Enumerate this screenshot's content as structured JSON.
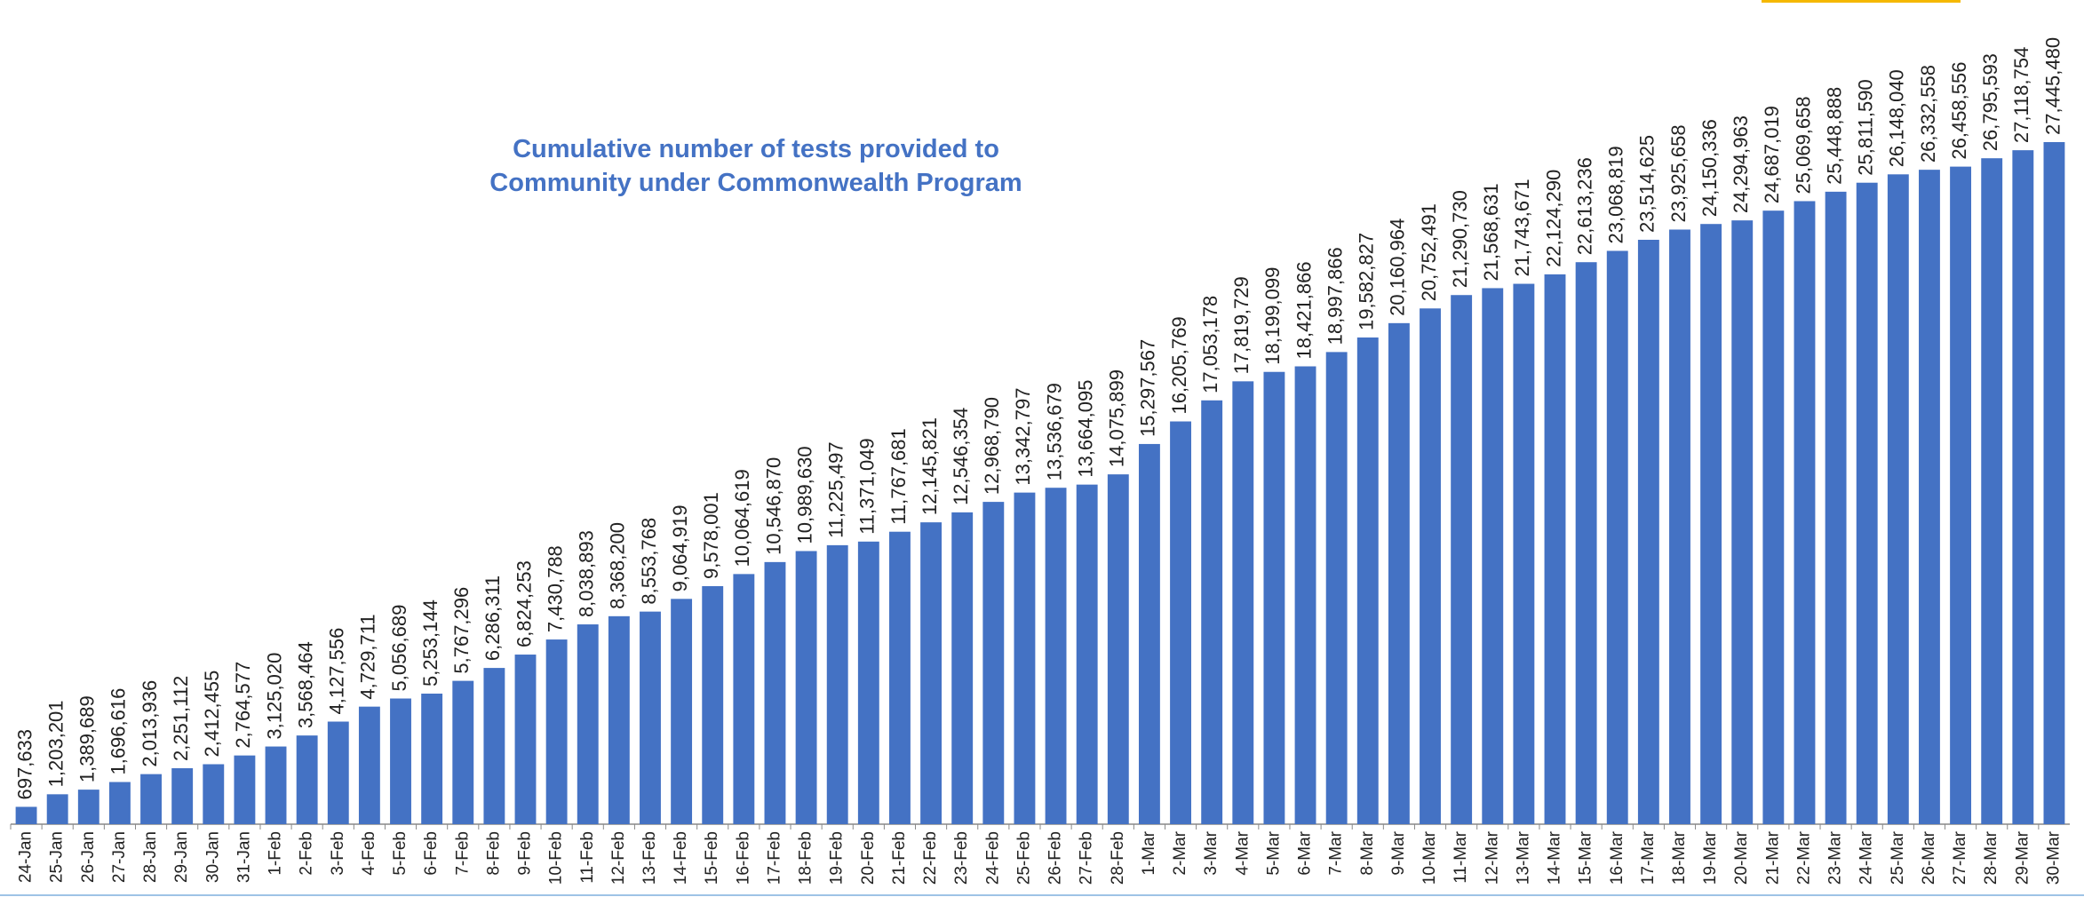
{
  "chart_data": {
    "type": "bar",
    "title": [
      "Cumulative number of tests provided to",
      "Community under Commonwealth Program"
    ],
    "color": "#4472c4",
    "categories": [
      "24-Jan",
      "25-Jan",
      "26-Jan",
      "27-Jan",
      "28-Jan",
      "29-Jan",
      "30-Jan",
      "31-Jan",
      "1-Feb",
      "2-Feb",
      "3-Feb",
      "4-Feb",
      "5-Feb",
      "6-Feb",
      "7-Feb",
      "8-Feb",
      "9-Feb",
      "10-Feb",
      "11-Feb",
      "12-Feb",
      "13-Feb",
      "14-Feb",
      "15-Feb",
      "16-Feb",
      "17-Feb",
      "18-Feb",
      "19-Feb",
      "20-Feb",
      "21-Feb",
      "22-Feb",
      "23-Feb",
      "24-Feb",
      "25-Feb",
      "26-Feb",
      "27-Feb",
      "28-Feb",
      "1-Mar",
      "2-Mar",
      "3-Mar",
      "4-Mar",
      "5-Mar",
      "6-Mar",
      "7-Mar",
      "8-Mar",
      "9-Mar",
      "10-Mar",
      "11-Mar",
      "12-Mar",
      "13-Mar",
      "14-Mar",
      "15-Mar",
      "16-Mar",
      "17-Mar",
      "18-Mar",
      "19-Mar",
      "20-Mar",
      "21-Mar",
      "22-Mar",
      "23-Mar",
      "24-Mar",
      "25-Mar",
      "26-Mar",
      "27-Mar",
      "28-Mar",
      "29-Mar",
      "30-Mar"
    ],
    "values": [
      697633,
      1203201,
      1389689,
      1696616,
      2013936,
      2251112,
      2412455,
      2764577,
      3125020,
      3568464,
      4127556,
      4729711,
      5056689,
      5253144,
      5767296,
      6286311,
      6824253,
      7430788,
      8038893,
      8368200,
      8553768,
      9064919,
      9578001,
      10064619,
      10546870,
      10989630,
      11225497,
      11371049,
      11767681,
      12145821,
      12546354,
      12968790,
      13342797,
      13536679,
      13664095,
      14075899,
      15297567,
      16205769,
      17053178,
      17819729,
      18199099,
      18421866,
      18997866,
      19582827,
      20160964,
      20752491,
      21290730,
      21568631,
      21743671,
      22124290,
      22613236,
      23068819,
      23514625,
      23925658,
      24150336,
      24294963,
      24687019,
      25069658,
      25448888,
      25811590,
      26148040,
      26332558,
      26458556,
      26795593,
      27118754,
      27445480
    ],
    "value_labels": [
      "697,633",
      "1,203,201",
      "1,389,689",
      "1,696,616",
      "2,013,936",
      "2,251,112",
      "2,412,455",
      "2,764,577",
      "3,125,020",
      "3,568,464",
      "4,127,556",
      "4,729,711",
      "5,056,689",
      "5,253,144",
      "5,767,296",
      "6,286,311",
      "6,824,253",
      "7,430,788",
      "8,038,893",
      "8,368,200",
      "8,553,768",
      "9,064,919",
      "9,578,001",
      "10,064,619",
      "10,546,870",
      "10,989,630",
      "11,225,497",
      "11,371,049",
      "11,767,681",
      "12,145,821",
      "12,546,354",
      "12,968,790",
      "13,342,797",
      "13,536,679",
      "13,664,095",
      "14,075,899",
      "15,297,567",
      "16,205,769",
      "17,053,178",
      "17,819,729",
      "18,199,099",
      "18,421,866",
      "18,997,866",
      "19,582,827",
      "20,160,964",
      "20,752,491",
      "21,290,730",
      "21,568,631",
      "21,743,671",
      "22,124,290",
      "22,613,236",
      "23,068,819",
      "23,514,625",
      "23,925,658",
      "24,150,336",
      "24,294,963",
      "24,687,019",
      "25,069,658",
      "25,448,888",
      "25,811,590",
      "26,148,040",
      "26,332,558",
      "26,458,556",
      "26,795,593",
      "27,118,754",
      "27,445,480"
    ]
  }
}
